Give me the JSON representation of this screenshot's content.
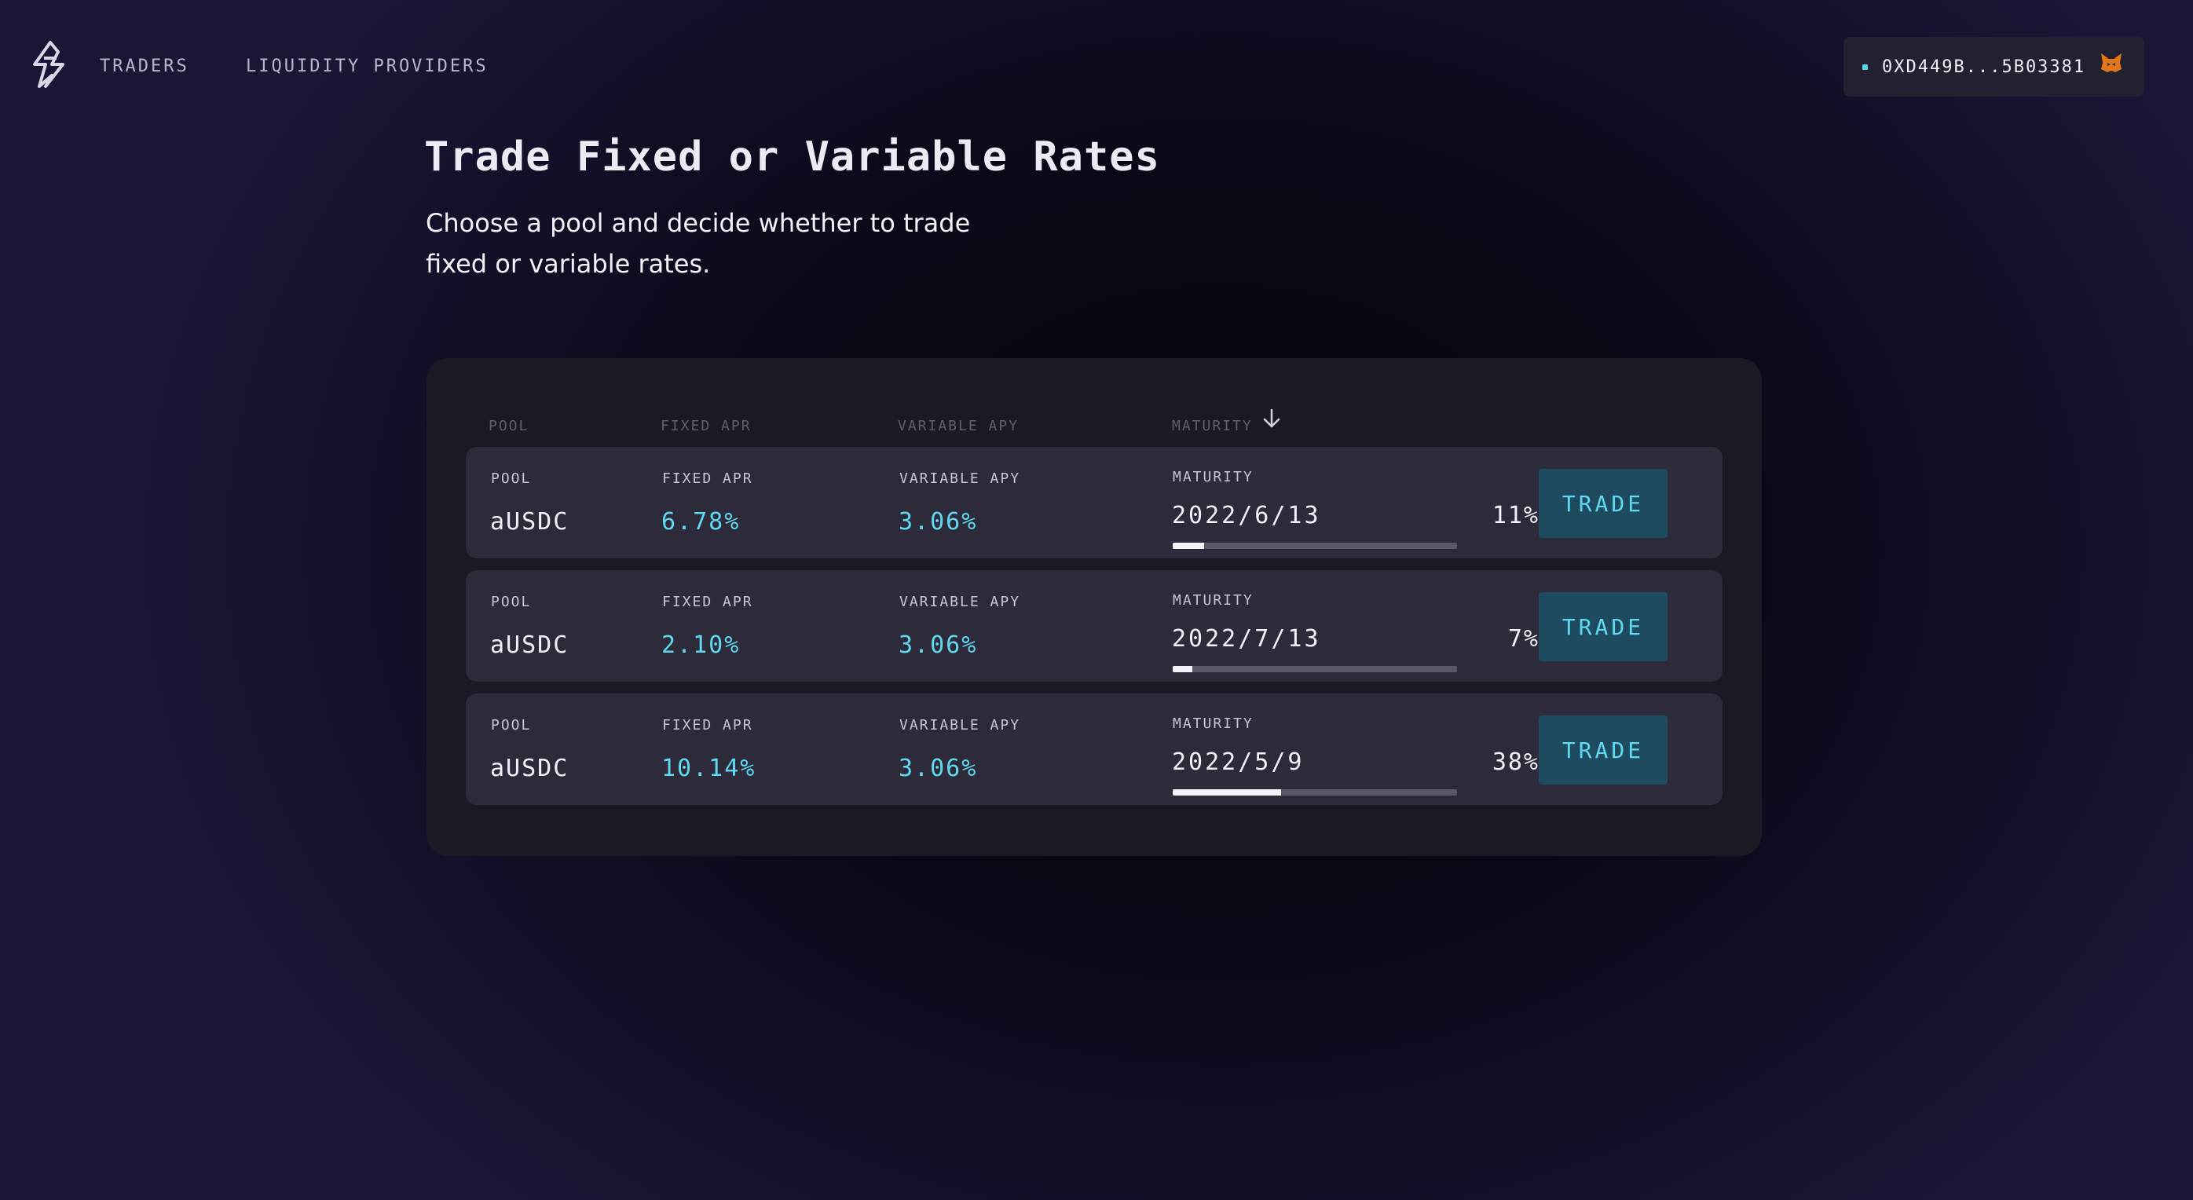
{
  "nav": {
    "links": [
      "TRADERS",
      "LIQUIDITY PROVIDERS"
    ],
    "wallet_address": "0XD449B...5B03381",
    "logo_icon": "lightning-bolt-logo-icon",
    "wallet_icon": "metamask-fox-icon"
  },
  "hero": {
    "title": "Trade Fixed or Variable Rates",
    "subtitle_line1": "Choose a pool and decide whether to trade",
    "subtitle_line2": "fixed or variable rates."
  },
  "table": {
    "headers": [
      "POOL",
      "FIXED APR",
      "VARIABLE APY",
      "MATURITY"
    ],
    "sort_icon": "arrow-down-icon",
    "trade_label": "TRADE",
    "rows": [
      {
        "pool_label": "POOL",
        "pool": "aUSDC",
        "fixed_label": "FIXED APR",
        "fixed_apr": "6.78%",
        "variable_label": "VARIABLE APY",
        "variable_apy": "3.06%",
        "maturity_label": "MATURITY",
        "maturity_date": "2022/6/13",
        "progress_label": "11%",
        "progress": 0.11
      },
      {
        "pool_label": "POOL",
        "pool": "aUSDC",
        "fixed_label": "FIXED APR",
        "fixed_apr": "2.10%",
        "variable_label": "VARIABLE APY",
        "variable_apy": "3.06%",
        "maturity_label": "MATURITY",
        "maturity_date": "2022/7/13",
        "progress_label": "7%",
        "progress": 0.07
      },
      {
        "pool_label": "POOL",
        "pool": "aUSDC",
        "fixed_label": "FIXED APR",
        "fixed_apr": "10.14%",
        "variable_label": "VARIABLE APY",
        "variable_apy": "3.06%",
        "maturity_label": "MATURITY",
        "maturity_date": "2022/5/9",
        "progress_label": "38%",
        "progress": 0.38
      }
    ]
  },
  "colors": {
    "accent": "#5fd9ef",
    "button_bg": "#1e4b60",
    "row_bg": "#2d2a3a",
    "panel_bg": "#1b1a24"
  }
}
